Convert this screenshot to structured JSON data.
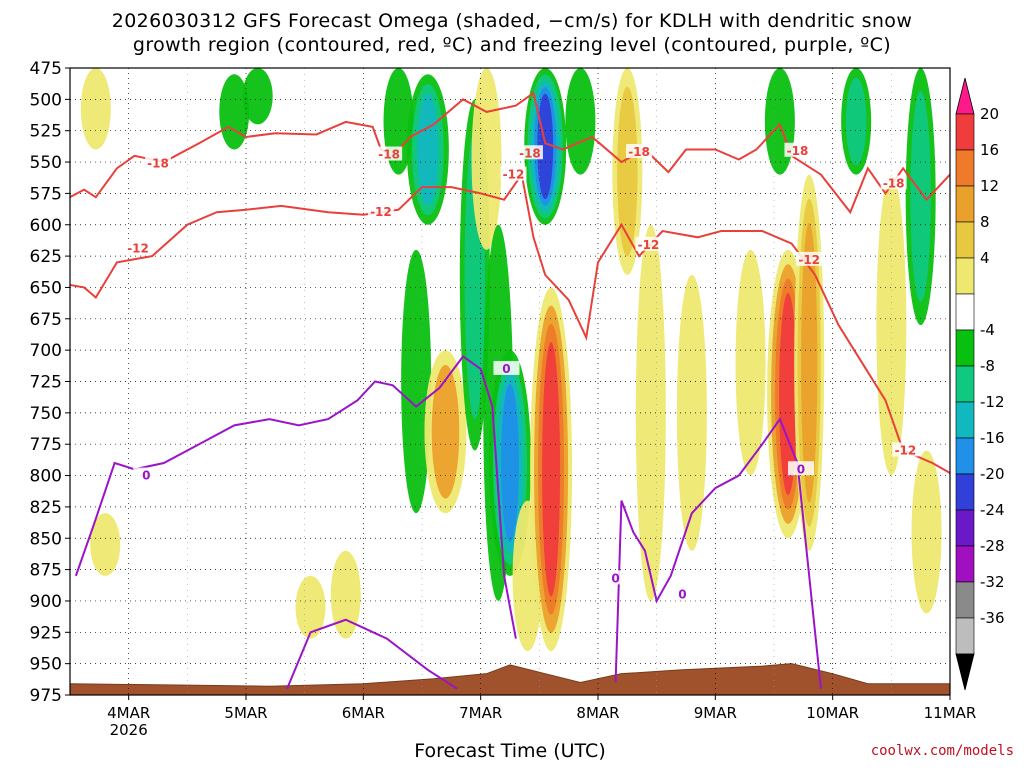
{
  "title_line1": "2026030312 GFS Forecast Omega (shaded, −cm/s) for KDLH with dendritic snow",
  "title_line2": "growth region (contoured, red, ºC) and freezing level (contoured, purple, ºC)",
  "xlabel": "Forecast Time (UTC)",
  "watermark": "coolwx.com/models",
  "chart_data": {
    "type": "heatmap",
    "title": "2026030312 GFS Forecast Omega (shaded, −cm/s) for KDLH with dendritic snow growth region (contoured, red, ºC) and freezing level (contoured, purple, ºC)",
    "xlabel": "Forecast Time (UTC)",
    "ylabel": "",
    "x_range": [
      "2026-03-03T12",
      "2026-03-11T00"
    ],
    "y_range_hpa": [
      975,
      475
    ],
    "y_ticks": [
      475,
      500,
      525,
      550,
      575,
      600,
      625,
      650,
      675,
      700,
      725,
      750,
      775,
      800,
      825,
      850,
      875,
      900,
      925,
      950,
      975
    ],
    "x_ticks": [
      {
        "label": "4MAR",
        "sub": "2026",
        "day": 4
      },
      {
        "label": "5MAR",
        "sub": "",
        "day": 5
      },
      {
        "label": "6MAR",
        "sub": "",
        "day": 6
      },
      {
        "label": "7MAR",
        "sub": "",
        "day": 7
      },
      {
        "label": "8MAR",
        "sub": "",
        "day": 8
      },
      {
        "label": "9MAR",
        "sub": "",
        "day": 9
      },
      {
        "label": "10MAR",
        "sub": "",
        "day": 10
      },
      {
        "label": "11MAR",
        "sub": "",
        "day": 11
      }
    ],
    "grid": "dotted",
    "colorbar": {
      "labels": [
        20,
        16,
        12,
        8,
        4,
        -4,
        -8,
        -12,
        -16,
        -20,
        -24,
        -28,
        -32,
        -36
      ],
      "colors": [
        "#ff1a8c",
        "#f03c3c",
        "#ee7a2a",
        "#eaa12c",
        "#e8c840",
        "#eee870",
        "#ffffff",
        "#08c010",
        "#10c880",
        "#12b8c0",
        "#2090e8",
        "#3040d8",
        "#6a18c8",
        "#a010c0",
        "#8a8a8a",
        "#bdbdbd",
        "#000000"
      ]
    },
    "omega_features": [
      {
        "day": 3.72,
        "p_top": 475,
        "p_bot": 540,
        "value": 6
      },
      {
        "day": 3.8,
        "p_top": 830,
        "p_bot": 880,
        "value": 5
      },
      {
        "day": 4.9,
        "p_top": 480,
        "p_bot": 540,
        "value": -6
      },
      {
        "day": 5.1,
        "p_top": 475,
        "p_bot": 520,
        "value": -6
      },
      {
        "day": 5.85,
        "p_top": 860,
        "p_bot": 930,
        "value": 6
      },
      {
        "day": 5.55,
        "p_top": 880,
        "p_bot": 930,
        "value": 5
      },
      {
        "day": 6.3,
        "p_top": 475,
        "p_bot": 560,
        "value": -6
      },
      {
        "day": 6.45,
        "p_top": 620,
        "p_bot": 830,
        "value": -8
      },
      {
        "day": 6.55,
        "p_top": 480,
        "p_bot": 600,
        "value": -14
      },
      {
        "day": 6.7,
        "p_top": 700,
        "p_bot": 830,
        "value": 12
      },
      {
        "day": 6.95,
        "p_top": 500,
        "p_bot": 780,
        "value": -10
      },
      {
        "day": 7.05,
        "p_top": 475,
        "p_bot": 620,
        "value": 6
      },
      {
        "day": 7.15,
        "p_top": 600,
        "p_bot": 900,
        "value": -8
      },
      {
        "day": 7.25,
        "p_top": 700,
        "p_bot": 880,
        "value": -20
      },
      {
        "day": 7.4,
        "p_top": 820,
        "p_bot": 940,
        "value": 6
      },
      {
        "day": 7.55,
        "p_top": 475,
        "p_bot": 600,
        "value": -22
      },
      {
        "day": 7.6,
        "p_top": 650,
        "p_bot": 940,
        "value": 20
      },
      {
        "day": 7.85,
        "p_top": 475,
        "p_bot": 560,
        "value": -8
      },
      {
        "day": 8.25,
        "p_top": 475,
        "p_bot": 640,
        "value": 8
      },
      {
        "day": 8.45,
        "p_top": 600,
        "p_bot": 900,
        "value": 6
      },
      {
        "day": 8.8,
        "p_top": 640,
        "p_bot": 860,
        "value": 6
      },
      {
        "day": 9.3,
        "p_top": 620,
        "p_bot": 800,
        "value": 5
      },
      {
        "day": 9.55,
        "p_top": 475,
        "p_bot": 560,
        "value": -6
      },
      {
        "day": 9.62,
        "p_top": 620,
        "p_bot": 850,
        "value": 18
      },
      {
        "day": 9.8,
        "p_top": 560,
        "p_bot": 860,
        "value": 9
      },
      {
        "day": 10.2,
        "p_top": 475,
        "p_bot": 560,
        "value": -10
      },
      {
        "day": 10.5,
        "p_top": 560,
        "p_bot": 800,
        "value": 5
      },
      {
        "day": 10.75,
        "p_top": 475,
        "p_bot": 680,
        "value": -10
      },
      {
        "day": 10.8,
        "p_top": 780,
        "p_bot": 910,
        "value": 5
      }
    ],
    "contours": [
      {
        "level": -18,
        "color": "#e8403a",
        "points": [
          [
            3.5,
            578
          ],
          [
            3.62,
            572
          ],
          [
            3.72,
            578
          ],
          [
            3.9,
            555
          ],
          [
            4.05,
            545
          ],
          [
            4.3,
            550
          ],
          [
            4.6,
            535
          ],
          [
            4.85,
            522
          ],
          [
            5.0,
            530
          ],
          [
            5.25,
            527
          ],
          [
            5.6,
            528
          ],
          [
            5.85,
            518
          ],
          [
            6.08,
            522
          ],
          [
            6.15,
            540
          ],
          [
            6.25,
            545
          ],
          [
            6.4,
            530
          ],
          [
            6.6,
            520
          ],
          [
            6.85,
            500
          ],
          [
            7.05,
            510
          ],
          [
            7.3,
            505
          ],
          [
            7.45,
            495
          ],
          [
            7.55,
            535
          ],
          [
            7.7,
            540
          ],
          [
            7.95,
            530
          ],
          [
            8.2,
            550
          ],
          [
            8.4,
            540
          ],
          [
            8.6,
            558
          ],
          [
            8.75,
            540
          ],
          [
            9.0,
            540
          ],
          [
            9.2,
            548
          ],
          [
            9.35,
            540
          ],
          [
            9.55,
            520
          ],
          [
            9.65,
            545
          ],
          [
            9.9,
            560
          ],
          [
            10.15,
            590
          ],
          [
            10.3,
            555
          ],
          [
            10.45,
            575
          ],
          [
            10.6,
            555
          ],
          [
            10.8,
            580
          ],
          [
            10.95,
            565
          ],
          [
            11.0,
            560
          ]
        ]
      },
      {
        "level": -12,
        "color": "#e8403a",
        "points": [
          [
            3.5,
            648
          ],
          [
            3.62,
            650
          ],
          [
            3.72,
            658
          ],
          [
            3.9,
            630
          ],
          [
            4.2,
            625
          ],
          [
            4.5,
            600
          ],
          [
            4.75,
            590
          ],
          [
            5.0,
            588
          ],
          [
            5.3,
            585
          ],
          [
            5.7,
            590
          ],
          [
            6.0,
            592
          ],
          [
            6.3,
            588
          ],
          [
            6.5,
            570
          ],
          [
            6.75,
            570
          ],
          [
            7.0,
            575
          ],
          [
            7.2,
            580
          ],
          [
            7.35,
            560
          ],
          [
            7.45,
            610
          ],
          [
            7.55,
            640
          ],
          [
            7.75,
            660
          ],
          [
            7.9,
            690
          ],
          [
            8.0,
            630
          ],
          [
            8.2,
            600
          ],
          [
            8.35,
            625
          ],
          [
            8.55,
            605
          ],
          [
            8.85,
            610
          ],
          [
            9.05,
            605
          ],
          [
            9.4,
            605
          ],
          [
            9.65,
            615
          ],
          [
            9.85,
            640
          ],
          [
            10.05,
            680
          ],
          [
            10.25,
            710
          ],
          [
            10.45,
            740
          ],
          [
            10.6,
            780
          ],
          [
            10.85,
            790
          ],
          [
            11.0,
            798
          ]
        ]
      },
      {
        "level": 0,
        "color": "#9b14c8",
        "points": [
          [
            3.55,
            880
          ],
          [
            3.7,
            840
          ],
          [
            3.88,
            790
          ],
          [
            4.05,
            795
          ],
          [
            4.3,
            790
          ],
          [
            4.6,
            775
          ],
          [
            4.9,
            760
          ],
          [
            5.2,
            755
          ],
          [
            5.45,
            760
          ],
          [
            5.7,
            755
          ],
          [
            5.95,
            740
          ],
          [
            6.1,
            725
          ],
          [
            6.25,
            728
          ],
          [
            6.45,
            745
          ],
          [
            6.65,
            730
          ],
          [
            6.85,
            705
          ],
          [
            7.0,
            715
          ],
          [
            7.1,
            745
          ],
          [
            7.2,
            880
          ],
          [
            7.3,
            930
          ]
        ]
      },
      {
        "level": 0,
        "color": "#9b14c8",
        "points": [
          [
            5.35,
            970
          ],
          [
            5.55,
            925
          ],
          [
            5.85,
            915
          ],
          [
            6.2,
            930
          ],
          [
            6.55,
            955
          ],
          [
            6.8,
            970
          ]
        ]
      },
      {
        "level": 0,
        "color": "#9b14c8",
        "points": [
          [
            8.15,
            965
          ],
          [
            8.2,
            820
          ],
          [
            8.3,
            845
          ],
          [
            8.4,
            860
          ],
          [
            8.5,
            900
          ],
          [
            8.62,
            880
          ],
          [
            8.8,
            830
          ],
          [
            9.0,
            810
          ],
          [
            9.2,
            800
          ],
          [
            9.4,
            775
          ],
          [
            9.55,
            755
          ],
          [
            9.7,
            790
          ],
          [
            9.85,
            925
          ],
          [
            9.9,
            970
          ]
        ]
      }
    ],
    "contour_labels": [
      {
        "text": "-18",
        "day": 4.25,
        "p": 551,
        "color": "#e8403a"
      },
      {
        "text": "-18",
        "day": 6.22,
        "p": 544,
        "color": "#e8403a"
      },
      {
        "text": "-18",
        "day": 7.42,
        "p": 543,
        "color": "#e8403a"
      },
      {
        "text": "-18",
        "day": 8.35,
        "p": 542,
        "color": "#e8403a"
      },
      {
        "text": "-18",
        "day": 9.7,
        "p": 541,
        "color": "#e8403a"
      },
      {
        "text": "-18",
        "day": 10.52,
        "p": 567,
        "color": "#e8403a"
      },
      {
        "text": "-12",
        "day": 4.08,
        "p": 619,
        "color": "#e8403a"
      },
      {
        "text": "-12",
        "day": 6.15,
        "p": 590,
        "color": "#e8403a"
      },
      {
        "text": "-12",
        "day": 7.28,
        "p": 560,
        "color": "#e8403a"
      },
      {
        "text": "-12",
        "day": 8.43,
        "p": 616,
        "color": "#e8403a"
      },
      {
        "text": "-12",
        "day": 9.8,
        "p": 628,
        "color": "#e8403a"
      },
      {
        "text": "-12",
        "day": 10.62,
        "p": 780,
        "color": "#e8403a"
      },
      {
        "text": "0",
        "day": 4.15,
        "p": 800,
        "color": "#9b14c8"
      },
      {
        "text": "0",
        "day": 7.22,
        "p": 715,
        "color": "#9b14c8"
      },
      {
        "text": "0",
        "day": 8.15,
        "p": 882,
        "color": "#9b14c8"
      },
      {
        "text": "0",
        "day": 8.72,
        "p": 895,
        "color": "#9b14c8"
      },
      {
        "text": "0",
        "day": 9.73,
        "p": 795,
        "color": "#9b14c8"
      }
    ],
    "terrain": [
      [
        3.5,
        966
      ],
      [
        5.2,
        968
      ],
      [
        6.0,
        966
      ],
      [
        6.6,
        962
      ],
      [
        7.05,
        958
      ],
      [
        7.25,
        951
      ],
      [
        7.55,
        958
      ],
      [
        7.85,
        965
      ],
      [
        8.2,
        958
      ],
      [
        8.7,
        955
      ],
      [
        9.4,
        952
      ],
      [
        9.65,
        950
      ],
      [
        10.0,
        958
      ],
      [
        10.3,
        966
      ],
      [
        11.0,
        966
      ]
    ]
  }
}
